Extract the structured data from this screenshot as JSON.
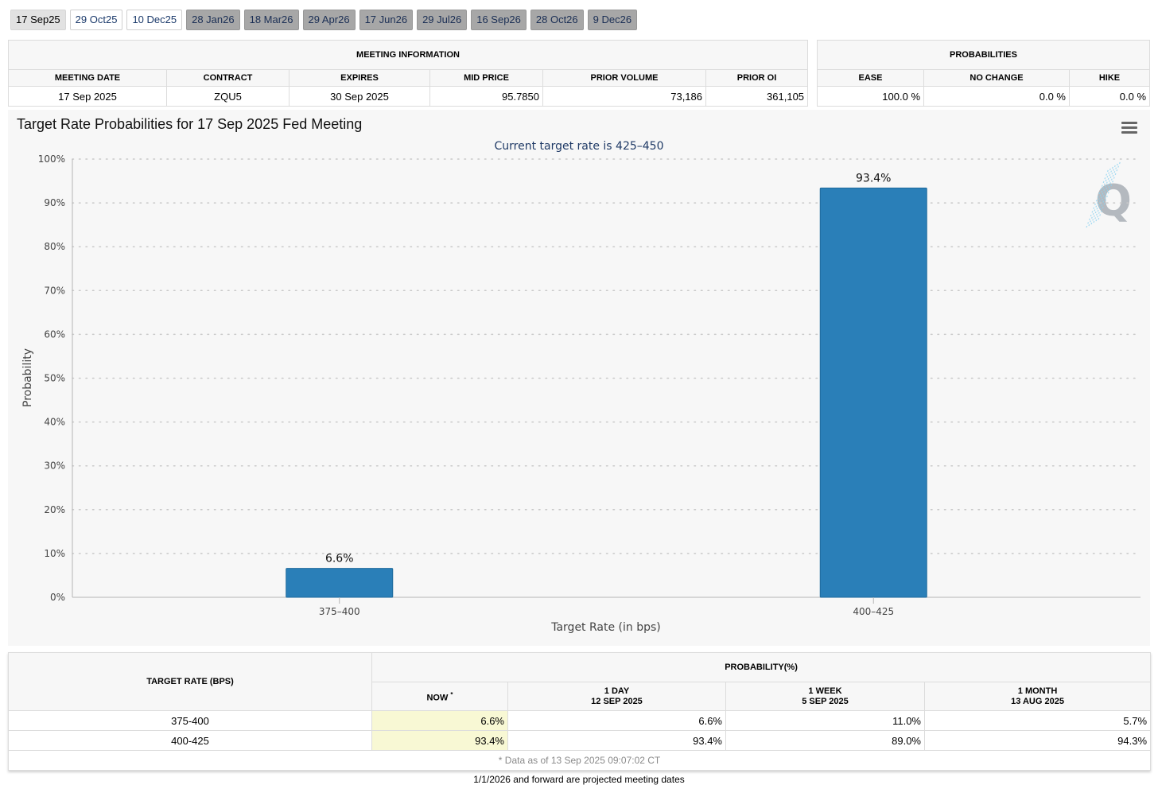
{
  "tabs": [
    {
      "label": "17 Sep25",
      "style": "active"
    },
    {
      "label": "29 Oct25",
      "style": "white"
    },
    {
      "label": "10 Dec25",
      "style": "white"
    },
    {
      "label": "28 Jan26",
      "style": "grey"
    },
    {
      "label": "18 Mar26",
      "style": "grey"
    },
    {
      "label": "29 Apr26",
      "style": "grey"
    },
    {
      "label": "17 Jun26",
      "style": "grey"
    },
    {
      "label": "29 Jul26",
      "style": "grey"
    },
    {
      "label": "16 Sep26",
      "style": "grey"
    },
    {
      "label": "28 Oct26",
      "style": "grey"
    },
    {
      "label": "9 Dec26",
      "style": "grey"
    }
  ],
  "meeting_info": {
    "title": "MEETING INFORMATION",
    "headers": [
      "MEETING DATE",
      "CONTRACT",
      "EXPIRES",
      "MID PRICE",
      "PRIOR VOLUME",
      "PRIOR OI"
    ],
    "row": [
      "17 Sep 2025",
      "ZQU5",
      "30 Sep 2025",
      "95.7850",
      "73,186",
      "361,105"
    ]
  },
  "probabilities": {
    "title": "PROBABILITIES",
    "headers": [
      "EASE",
      "NO CHANGE",
      "HIKE"
    ],
    "row": [
      "100.0 %",
      "0.0 %",
      "0.0 %"
    ]
  },
  "chart_data": {
    "type": "bar",
    "title": "Target Rate Probabilities for 17 Sep 2025 Fed Meeting",
    "subtitle": "Current target rate is 425–450",
    "xlabel": "Target Rate (in bps)",
    "ylabel": "Probability",
    "categories": [
      "375–400",
      "400–425"
    ],
    "values": [
      6.6,
      93.4
    ],
    "data_labels": [
      "6.6%",
      "93.4%"
    ],
    "ylim": [
      0,
      100
    ],
    "yticks": [
      "0%",
      "10%",
      "20%",
      "30%",
      "40%",
      "50%",
      "60%",
      "70%",
      "80%",
      "90%",
      "100%"
    ],
    "grid": true,
    "bar_color": "#2a7fb8"
  },
  "rate_table": {
    "col1_header": "TARGET RATE (BPS)",
    "prob_header": "PROBABILITY(%)",
    "now_label": "NOW",
    "now_marker": "*",
    "sub_headers": [
      {
        "line1": "1 DAY",
        "line2": "12 SEP 2025"
      },
      {
        "line1": "1 WEEK",
        "line2": "5 SEP 2025"
      },
      {
        "line1": "1 MONTH",
        "line2": "13 AUG 2025"
      }
    ],
    "rows": [
      {
        "rate": "375-400",
        "now": "6.6%",
        "day": "6.6%",
        "week": "11.0%",
        "month": "5.7%"
      },
      {
        "rate": "400-425",
        "now": "93.4%",
        "day": "93.4%",
        "week": "89.0%",
        "month": "94.3%"
      }
    ],
    "note": "* Data as of 13 Sep 2025 09:07:02 CT"
  },
  "footer_note": "1/1/2026 and forward are projected meeting dates",
  "watermark_letter": "Q"
}
